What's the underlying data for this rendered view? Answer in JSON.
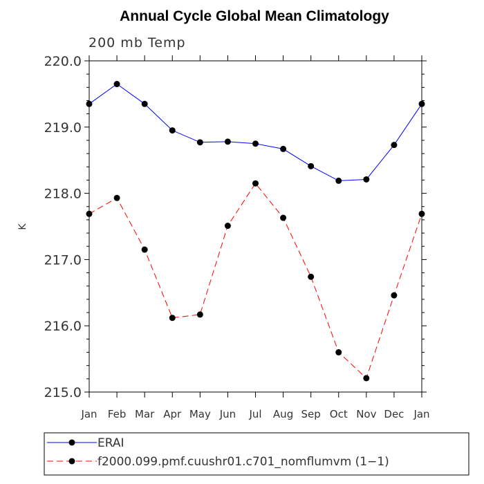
{
  "chart_data": {
    "type": "line",
    "title": "Annual Cycle Global Mean Climatology",
    "subtitle": "200 mb Temp",
    "ylabel": "K",
    "xlabel": "",
    "categories": [
      "Jan",
      "Feb",
      "Mar",
      "Apr",
      "May",
      "Jun",
      "Jul",
      "Aug",
      "Sep",
      "Oct",
      "Nov",
      "Dec",
      "Jan"
    ],
    "ylim": [
      215.0,
      220.0
    ],
    "yticks": [
      "215.0",
      "216.0",
      "217.0",
      "218.0",
      "219.0",
      "220.0"
    ],
    "grid": false,
    "legend_position": "bottom",
    "series": [
      {
        "name": "ERAI",
        "color": "#0000ff",
        "style": "solid",
        "values": [
          219.35,
          219.65,
          219.35,
          218.95,
          218.77,
          218.78,
          218.75,
          218.67,
          218.41,
          218.19,
          218.21,
          218.73,
          219.35
        ]
      },
      {
        "name": "f2000.099.pmf.cuushr01.c701_nomflumvm (1−1)",
        "color": "#ff0000",
        "style": "dashed",
        "values": [
          217.69,
          217.93,
          217.15,
          216.12,
          216.17,
          217.51,
          218.15,
          217.63,
          216.74,
          215.6,
          215.21,
          216.46,
          217.69
        ]
      }
    ]
  }
}
